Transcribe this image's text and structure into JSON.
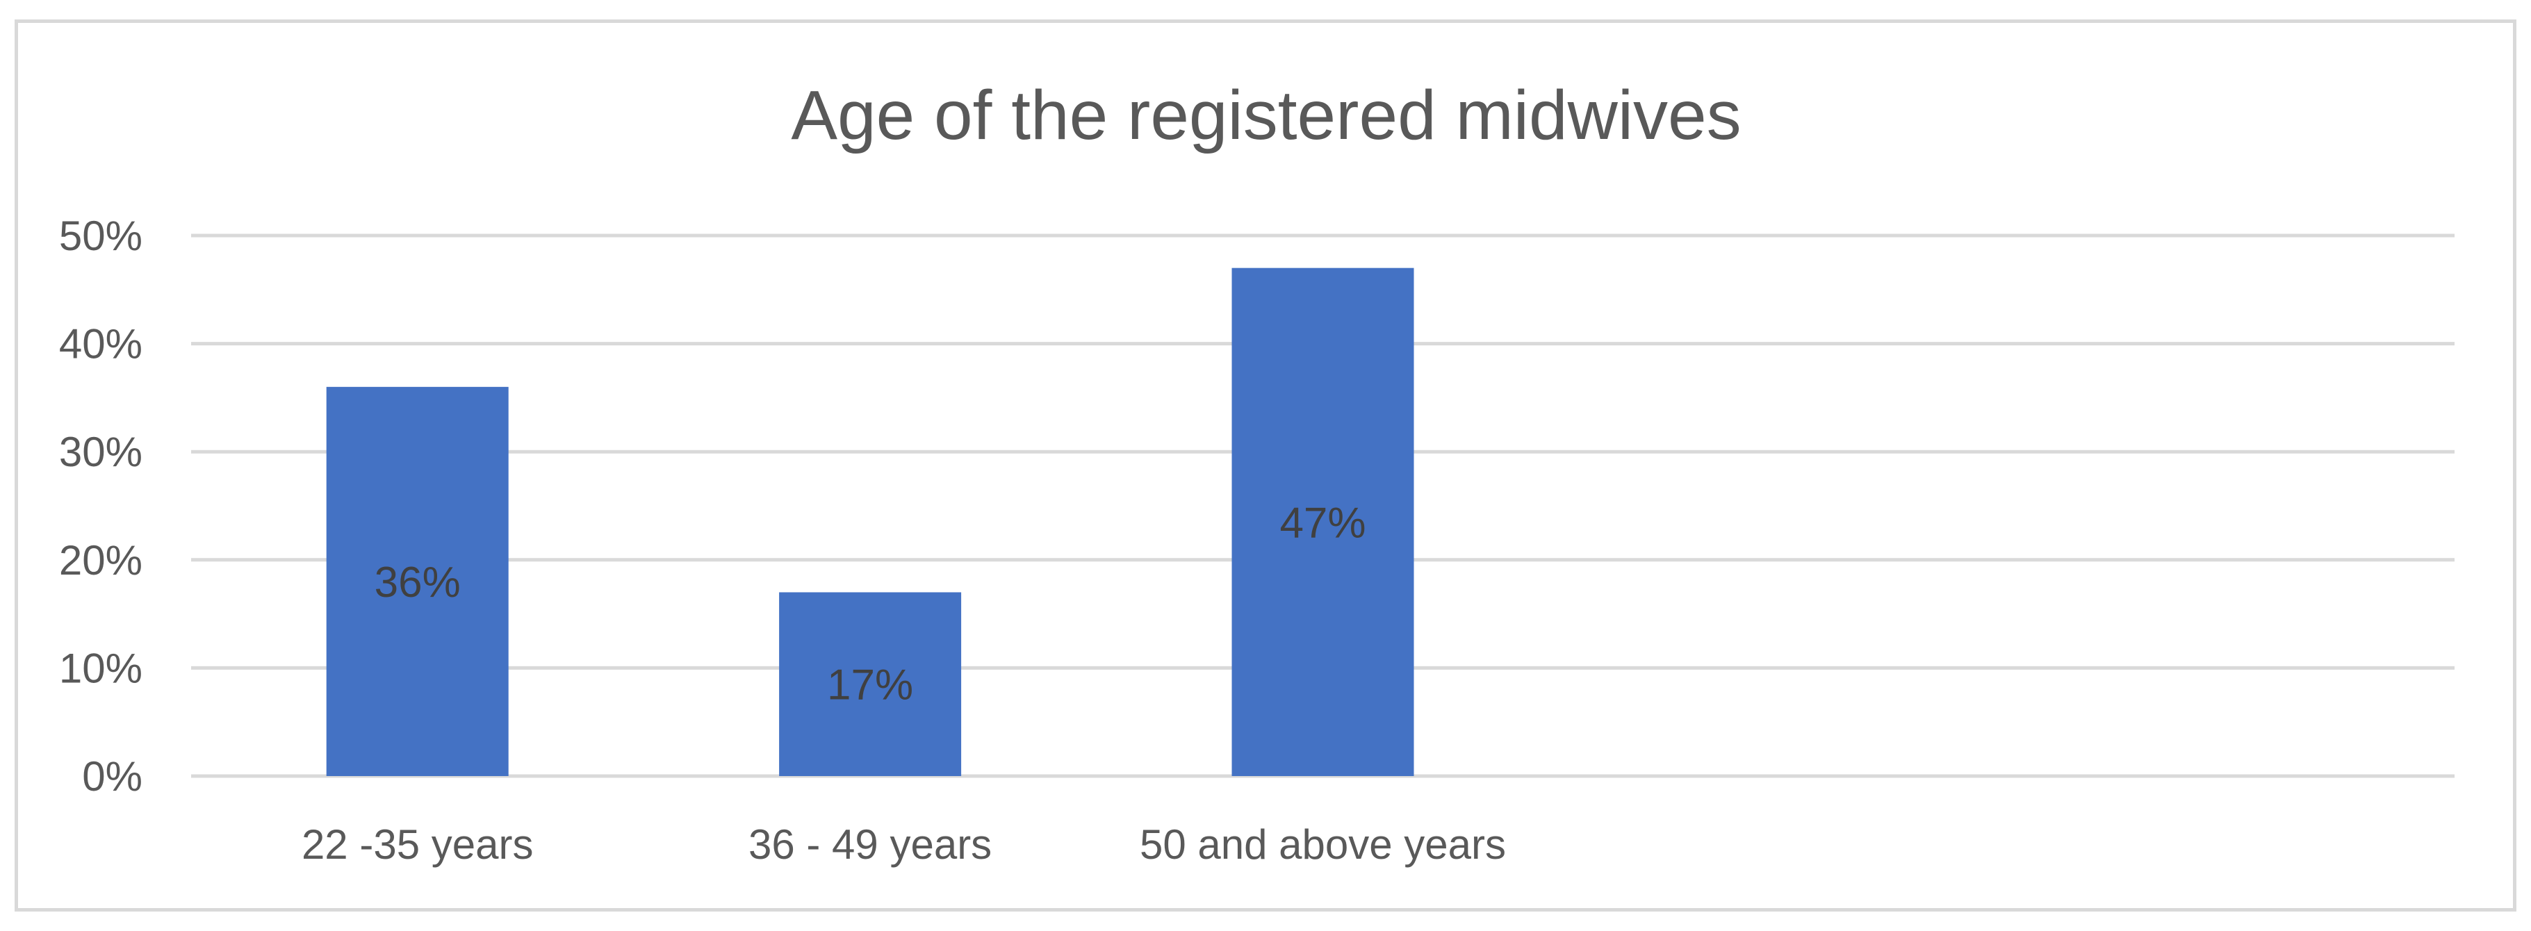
{
  "chart_data": {
    "type": "bar",
    "title": "Age of the registered midwives",
    "categories": [
      "22 -35 years",
      "36 - 49 years",
      "50 and above years"
    ],
    "values": [
      36,
      17,
      47
    ],
    "data_labels": [
      "36%",
      "17%",
      "47%"
    ],
    "ylim": [
      0,
      50
    ],
    "yticks": [
      0,
      10,
      20,
      30,
      40,
      50
    ],
    "ytick_labels": [
      "0%",
      "10%",
      "20%",
      "30%",
      "40%",
      "50%"
    ],
    "xlabel": "",
    "ylabel": "",
    "grid": true,
    "legend": "none",
    "colors": {
      "bar": "#4472C4",
      "grid": "#d9d9d9",
      "text": "#595959",
      "label": "#404040",
      "border": "#d9d9d9"
    }
  }
}
